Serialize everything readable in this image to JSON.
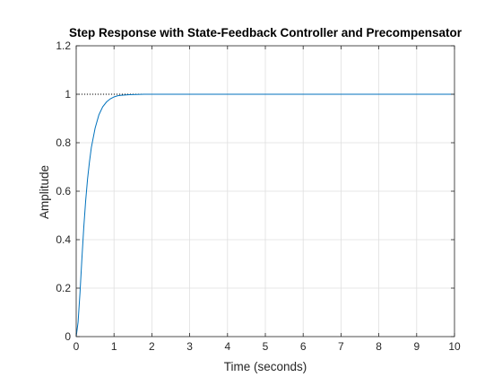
{
  "chart_data": {
    "type": "line",
    "title": "Step Response with State-Feedback Controller and Precompensator",
    "xlabel": "Time (seconds)",
    "ylabel": "Amplitude",
    "xlim": [
      0,
      10
    ],
    "ylim": [
      0,
      1.2
    ],
    "x_ticks": [
      "0",
      "1",
      "2",
      "3",
      "4",
      "5",
      "6",
      "7",
      "8",
      "9",
      "10"
    ],
    "y_ticks": [
      "0",
      "0.2",
      "0.4",
      "0.6",
      "0.8",
      "1",
      "1.2"
    ],
    "grid": true,
    "series": [
      {
        "color": "#0072BD",
        "x": [
          0,
          0.05,
          0.1,
          0.15,
          0.2,
          0.25,
          0.3,
          0.35,
          0.4,
          0.5,
          0.6,
          0.7,
          0.8,
          0.9,
          1.0,
          1.1,
          1.2,
          1.4,
          1.6,
          1.8,
          2.0,
          2.5,
          3,
          4,
          5,
          6,
          7,
          8,
          9,
          10
        ],
        "y": [
          0,
          0.06,
          0.18,
          0.32,
          0.45,
          0.56,
          0.65,
          0.72,
          0.78,
          0.86,
          0.915,
          0.948,
          0.968,
          0.981,
          0.989,
          0.994,
          0.996,
          0.998,
          0.999,
          1.0,
          1.0,
          1.0,
          1.0,
          1.0,
          1.0,
          1.0,
          1.0,
          1.0,
          1.0,
          1.0
        ]
      }
    ],
    "reference_line": {
      "y": 1,
      "style": "dotted",
      "color": "#000000",
      "x_range": [
        0,
        2
      ]
    }
  }
}
